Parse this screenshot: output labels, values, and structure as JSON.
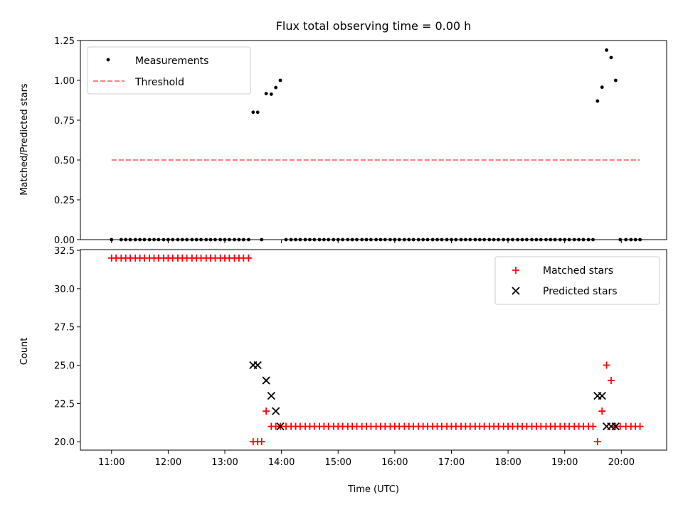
{
  "title": "Flux total observing time = 0.00 h",
  "colors": {
    "matched": "#ff0000",
    "predicted": "#000000",
    "threshold": "#ff7f7f",
    "measurement": "#000000"
  },
  "chart_data": [
    {
      "type": "scatter",
      "ylabel": "Matched/Predicted stars",
      "ylim": [
        0,
        1.25
      ],
      "yticks": [
        "0.00",
        "0.25",
        "0.50",
        "0.75",
        "1.00",
        "1.25"
      ],
      "xlim": [
        10.45,
        20.8
      ],
      "legend": {
        "position": "top-left",
        "entries": [
          "Measurements",
          "Threshold"
        ]
      },
      "threshold": {
        "name": "Threshold",
        "value": 0.5,
        "x": [
          11.0,
          20.33
        ]
      },
      "series": [
        {
          "name": "Measurements",
          "points": [
            [
              11.0,
              0
            ],
            [
              11.17,
              0
            ],
            [
              11.25,
              0
            ],
            [
              11.33,
              0
            ],
            [
              11.42,
              0
            ],
            [
              11.5,
              0
            ],
            [
              11.58,
              0
            ],
            [
              11.67,
              0
            ],
            [
              11.75,
              0
            ],
            [
              11.83,
              0
            ],
            [
              11.92,
              0
            ],
            [
              12.0,
              0
            ],
            [
              12.08,
              0
            ],
            [
              12.17,
              0
            ],
            [
              12.25,
              0
            ],
            [
              12.33,
              0
            ],
            [
              12.42,
              0
            ],
            [
              12.5,
              0
            ],
            [
              12.58,
              0
            ],
            [
              12.67,
              0
            ],
            [
              12.75,
              0
            ],
            [
              12.83,
              0
            ],
            [
              12.92,
              0
            ],
            [
              13.0,
              0
            ],
            [
              13.08,
              0
            ],
            [
              13.17,
              0
            ],
            [
              13.25,
              0
            ],
            [
              13.33,
              0
            ],
            [
              13.42,
              0
            ],
            [
              13.5,
              0.8
            ],
            [
              13.58,
              0.8
            ],
            [
              13.65,
              0
            ],
            [
              13.73,
              0.917
            ],
            [
              13.82,
              0.913
            ],
            [
              13.9,
              0.955
            ],
            [
              13.98,
              1.0
            ],
            [
              14.08,
              0
            ],
            [
              14.17,
              0
            ],
            [
              14.25,
              0
            ],
            [
              14.33,
              0
            ],
            [
              14.42,
              0
            ],
            [
              14.5,
              0
            ],
            [
              14.58,
              0
            ],
            [
              14.67,
              0
            ],
            [
              14.75,
              0
            ],
            [
              14.83,
              0
            ],
            [
              14.92,
              0
            ],
            [
              15.0,
              0
            ],
            [
              15.08,
              0
            ],
            [
              15.17,
              0
            ],
            [
              15.25,
              0
            ],
            [
              15.33,
              0
            ],
            [
              15.42,
              0
            ],
            [
              15.5,
              0
            ],
            [
              15.58,
              0
            ],
            [
              15.67,
              0
            ],
            [
              15.75,
              0
            ],
            [
              15.83,
              0
            ],
            [
              15.92,
              0
            ],
            [
              16.0,
              0
            ],
            [
              16.08,
              0
            ],
            [
              16.17,
              0
            ],
            [
              16.25,
              0
            ],
            [
              16.33,
              0
            ],
            [
              16.42,
              0
            ],
            [
              16.5,
              0
            ],
            [
              16.58,
              0
            ],
            [
              16.67,
              0
            ],
            [
              16.75,
              0
            ],
            [
              16.83,
              0
            ],
            [
              16.92,
              0
            ],
            [
              17.0,
              0
            ],
            [
              17.08,
              0
            ],
            [
              17.17,
              0
            ],
            [
              17.25,
              0
            ],
            [
              17.33,
              0
            ],
            [
              17.42,
              0
            ],
            [
              17.5,
              0
            ],
            [
              17.58,
              0
            ],
            [
              17.67,
              0
            ],
            [
              17.75,
              0
            ],
            [
              17.83,
              0
            ],
            [
              17.92,
              0
            ],
            [
              18.0,
              0
            ],
            [
              18.08,
              0
            ],
            [
              18.17,
              0
            ],
            [
              18.25,
              0
            ],
            [
              18.33,
              0
            ],
            [
              18.42,
              0
            ],
            [
              18.5,
              0
            ],
            [
              18.58,
              0
            ],
            [
              18.67,
              0
            ],
            [
              18.75,
              0
            ],
            [
              18.83,
              0
            ],
            [
              18.92,
              0
            ],
            [
              19.0,
              0
            ],
            [
              19.08,
              0
            ],
            [
              19.17,
              0
            ],
            [
              19.25,
              0
            ],
            [
              19.33,
              0
            ],
            [
              19.42,
              0
            ],
            [
              19.5,
              0
            ],
            [
              19.58,
              0.87
            ],
            [
              19.66,
              0.957
            ],
            [
              19.74,
              1.19
            ],
            [
              19.82,
              1.143
            ],
            [
              19.9,
              1.0
            ],
            [
              19.98,
              0
            ],
            [
              20.08,
              0
            ],
            [
              20.17,
              0
            ],
            [
              20.25,
              0
            ],
            [
              20.33,
              0
            ]
          ]
        }
      ]
    },
    {
      "type": "scatter",
      "xlabel": "Time (UTC)",
      "ylabel": "Count",
      "ylim": [
        19.45,
        32.55
      ],
      "yticks": [
        "20.0",
        "22.5",
        "25.0",
        "27.5",
        "30.0",
        "32.5"
      ],
      "xlim": [
        10.45,
        20.8
      ],
      "xticks": [
        "11:00",
        "12:00",
        "13:00",
        "14:00",
        "15:00",
        "16:00",
        "17:00",
        "18:00",
        "19:00",
        "20:00"
      ],
      "legend": {
        "position": "top-right",
        "entries": [
          "Matched stars",
          "Predicted stars"
        ]
      },
      "series": [
        {
          "name": "Matched stars",
          "points": [
            [
              11.0,
              32
            ],
            [
              11.08,
              32
            ],
            [
              11.17,
              32
            ],
            [
              11.25,
              32
            ],
            [
              11.33,
              32
            ],
            [
              11.42,
              32
            ],
            [
              11.5,
              32
            ],
            [
              11.58,
              32
            ],
            [
              11.67,
              32
            ],
            [
              11.75,
              32
            ],
            [
              11.83,
              32
            ],
            [
              11.92,
              32
            ],
            [
              12.0,
              32
            ],
            [
              12.08,
              32
            ],
            [
              12.17,
              32
            ],
            [
              12.25,
              32
            ],
            [
              12.33,
              32
            ],
            [
              12.42,
              32
            ],
            [
              12.5,
              32
            ],
            [
              12.58,
              32
            ],
            [
              12.67,
              32
            ],
            [
              12.75,
              32
            ],
            [
              12.83,
              32
            ],
            [
              12.92,
              32
            ],
            [
              13.0,
              32
            ],
            [
              13.08,
              32
            ],
            [
              13.17,
              32
            ],
            [
              13.25,
              32
            ],
            [
              13.33,
              32
            ],
            [
              13.42,
              32
            ],
            [
              13.5,
              20
            ],
            [
              13.58,
              20
            ],
            [
              13.65,
              20
            ],
            [
              13.73,
              22
            ],
            [
              13.82,
              21
            ],
            [
              13.9,
              21
            ],
            [
              13.98,
              21
            ],
            [
              14.08,
              21
            ],
            [
              14.17,
              21
            ],
            [
              14.25,
              21
            ],
            [
              14.33,
              21
            ],
            [
              14.42,
              21
            ],
            [
              14.5,
              21
            ],
            [
              14.58,
              21
            ],
            [
              14.67,
              21
            ],
            [
              14.75,
              21
            ],
            [
              14.83,
              21
            ],
            [
              14.92,
              21
            ],
            [
              15.0,
              21
            ],
            [
              15.08,
              21
            ],
            [
              15.17,
              21
            ],
            [
              15.25,
              21
            ],
            [
              15.33,
              21
            ],
            [
              15.42,
              21
            ],
            [
              15.5,
              21
            ],
            [
              15.58,
              21
            ],
            [
              15.67,
              21
            ],
            [
              15.75,
              21
            ],
            [
              15.83,
              21
            ],
            [
              15.92,
              21
            ],
            [
              16.0,
              21
            ],
            [
              16.08,
              21
            ],
            [
              16.17,
              21
            ],
            [
              16.25,
              21
            ],
            [
              16.33,
              21
            ],
            [
              16.42,
              21
            ],
            [
              16.5,
              21
            ],
            [
              16.58,
              21
            ],
            [
              16.67,
              21
            ],
            [
              16.75,
              21
            ],
            [
              16.83,
              21
            ],
            [
              16.92,
              21
            ],
            [
              17.0,
              21
            ],
            [
              17.08,
              21
            ],
            [
              17.17,
              21
            ],
            [
              17.25,
              21
            ],
            [
              17.33,
              21
            ],
            [
              17.42,
              21
            ],
            [
              17.5,
              21
            ],
            [
              17.58,
              21
            ],
            [
              17.67,
              21
            ],
            [
              17.75,
              21
            ],
            [
              17.83,
              21
            ],
            [
              17.92,
              21
            ],
            [
              18.0,
              21
            ],
            [
              18.08,
              21
            ],
            [
              18.17,
              21
            ],
            [
              18.25,
              21
            ],
            [
              18.33,
              21
            ],
            [
              18.42,
              21
            ],
            [
              18.5,
              21
            ],
            [
              18.58,
              21
            ],
            [
              18.67,
              21
            ],
            [
              18.75,
              21
            ],
            [
              18.83,
              21
            ],
            [
              18.92,
              21
            ],
            [
              19.0,
              21
            ],
            [
              19.08,
              21
            ],
            [
              19.17,
              21
            ],
            [
              19.25,
              21
            ],
            [
              19.33,
              21
            ],
            [
              19.42,
              21
            ],
            [
              19.5,
              21
            ],
            [
              19.58,
              20
            ],
            [
              19.66,
              22
            ],
            [
              19.74,
              25
            ],
            [
              19.82,
              24
            ],
            [
              19.9,
              21
            ],
            [
              19.98,
              21
            ],
            [
              20.08,
              21
            ],
            [
              20.17,
              21
            ],
            [
              20.25,
              21
            ],
            [
              20.33,
              21
            ]
          ]
        },
        {
          "name": "Predicted stars",
          "points": [
            [
              13.5,
              25
            ],
            [
              13.58,
              25
            ],
            [
              13.73,
              24
            ],
            [
              13.82,
              23
            ],
            [
              13.9,
              22
            ],
            [
              13.98,
              21
            ],
            [
              19.58,
              23
            ],
            [
              19.66,
              23
            ],
            [
              19.74,
              21
            ],
            [
              19.82,
              21
            ],
            [
              19.9,
              21
            ]
          ]
        }
      ]
    }
  ]
}
